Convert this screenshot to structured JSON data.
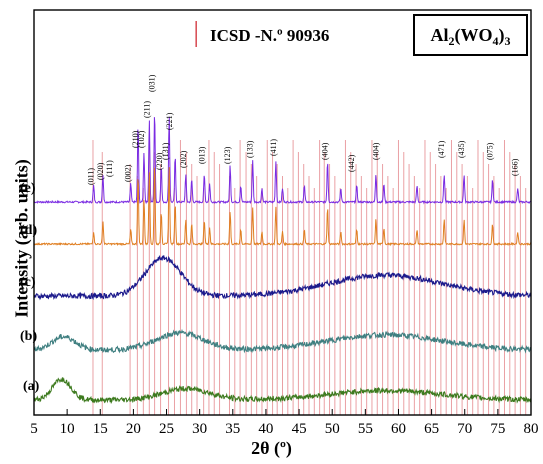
{
  "chart_data": {
    "type": "line",
    "title": "",
    "xlabel": "2θ (º)",
    "ylabel": "Intensity (arb. units)",
    "xlim": [
      5,
      80
    ],
    "x_ticks": [
      5,
      10,
      15,
      20,
      25,
      30,
      35,
      40,
      45,
      50,
      55,
      60,
      65,
      70,
      75,
      80
    ],
    "y_ticks_shown": false,
    "reference_legend": "ICSD -N.º 90936",
    "formula_box": {
      "text": "Al",
      "sub1": "2",
      "mid": "(WO",
      "sub2": "4",
      "end": ")",
      "sub3": "3"
    },
    "reference_color": "#d9535a",
    "reference_lines": [
      13.9,
      15.3,
      19.5,
      20.6,
      21.5,
      22.4,
      23.2,
      24.1,
      25.3,
      26.2,
      27.1,
      28.0,
      28.8,
      29.6,
      30.6,
      31.4,
      32.2,
      33.0,
      34.5,
      35.3,
      36.1,
      37.0,
      37.8,
      38.6,
      39.4,
      40.2,
      41.0,
      41.7,
      42.5,
      43.3,
      44.1,
      44.9,
      45.7,
      46.5,
      47.3,
      48.1,
      48.8,
      49.6,
      50.4,
      51.2,
      52.0,
      52.8,
      53.6,
      54.4,
      55.2,
      56.0,
      56.8,
      57.6,
      58.4,
      59.2,
      60.0,
      60.8,
      61.6,
      62.4,
      63.2,
      64.0,
      64.8,
      65.6,
      66.4,
      67.2,
      68.0,
      68.8,
      69.6,
      70.4,
      71.2,
      72.0,
      72.8,
      73.6,
      74.4,
      75.2,
      76.0,
      76.8,
      77.6,
      78.4,
      79.2
    ],
    "series": [
      {
        "name": "(e)",
        "color": "#7a2be2",
        "kind": "crystalline",
        "peaks": [
          [
            14.0,
            0.18
          ],
          [
            15.4,
            0.3
          ],
          [
            19.6,
            0.2
          ],
          [
            20.7,
            0.85
          ],
          [
            21.6,
            0.55
          ],
          [
            22.4,
            0.9
          ],
          [
            23.2,
            1.0
          ],
          [
            24.2,
            0.4
          ],
          [
            25.4,
            0.95
          ],
          [
            26.3,
            0.5
          ],
          [
            27.9,
            0.3
          ],
          [
            28.8,
            0.25
          ],
          [
            30.7,
            0.3
          ],
          [
            31.5,
            0.2
          ],
          [
            34.6,
            0.4
          ],
          [
            36.2,
            0.18
          ],
          [
            38.0,
            0.45
          ],
          [
            39.4,
            0.15
          ],
          [
            41.5,
            0.45
          ],
          [
            42.5,
            0.15
          ],
          [
            45.8,
            0.18
          ],
          [
            49.3,
            0.45
          ],
          [
            51.3,
            0.15
          ],
          [
            53.7,
            0.18
          ],
          [
            56.6,
            0.3
          ],
          [
            57.8,
            0.2
          ],
          [
            62.8,
            0.18
          ],
          [
            66.9,
            0.3
          ],
          [
            69.9,
            0.3
          ],
          [
            74.2,
            0.25
          ],
          [
            78.0,
            0.15
          ]
        ]
      },
      {
        "name": "(d)",
        "color": "#e07f22",
        "kind": "crystalline",
        "peaks": [
          [
            14.0,
            0.15
          ],
          [
            15.4,
            0.28
          ],
          [
            19.6,
            0.18
          ],
          [
            20.7,
            0.85
          ],
          [
            21.6,
            0.55
          ],
          [
            22.4,
            0.9
          ],
          [
            23.2,
            1.0
          ],
          [
            24.2,
            0.4
          ],
          [
            25.4,
            0.95
          ],
          [
            26.3,
            0.5
          ],
          [
            27.9,
            0.3
          ],
          [
            28.8,
            0.25
          ],
          [
            30.7,
            0.3
          ],
          [
            31.5,
            0.2
          ],
          [
            34.6,
            0.4
          ],
          [
            36.2,
            0.18
          ],
          [
            38.0,
            0.45
          ],
          [
            39.4,
            0.15
          ],
          [
            41.5,
            0.45
          ],
          [
            42.5,
            0.15
          ],
          [
            45.8,
            0.18
          ],
          [
            49.3,
            0.45
          ],
          [
            51.3,
            0.15
          ],
          [
            53.7,
            0.18
          ],
          [
            56.6,
            0.3
          ],
          [
            57.8,
            0.2
          ],
          [
            62.8,
            0.18
          ],
          [
            66.9,
            0.3
          ],
          [
            69.9,
            0.3
          ],
          [
            74.2,
            0.25
          ],
          [
            78.0,
            0.15
          ]
        ]
      },
      {
        "name": "(c)",
        "color": "#1c1a8c",
        "kind": "amorphous",
        "humps": [
          [
            24.5,
            1.0,
            3.8
          ],
          [
            58,
            0.55,
            12
          ]
        ]
      },
      {
        "name": "(b)",
        "color": "#3f7f80",
        "kind": "amorphous",
        "humps": [
          [
            9.5,
            0.35,
            2.5
          ],
          [
            27,
            0.45,
            5
          ],
          [
            58,
            0.4,
            12
          ]
        ]
      },
      {
        "name": "(a)",
        "color": "#3d7a1e",
        "kind": "amorphous",
        "humps": [
          [
            9.2,
            0.55,
            2.0
          ],
          [
            28,
            0.3,
            5
          ],
          [
            58,
            0.25,
            12
          ]
        ]
      }
    ],
    "miller_labels": [
      {
        "x": 14.0,
        "text": "(011)"
      },
      {
        "x": 15.4,
        "text": "(020)"
      },
      {
        "x": 16.8,
        "text": "(111)"
      },
      {
        "x": 19.6,
        "text": "(002)"
      },
      {
        "x": 20.7,
        "text": "(210)"
      },
      {
        "x": 21.6,
        "text": "(102)"
      },
      {
        "x": 22.4,
        "text": "(211)"
      },
      {
        "x": 23.2,
        "text": "(031)"
      },
      {
        "x": 24.3,
        "text": "(220)"
      },
      {
        "x": 25.2,
        "text": "(131)"
      },
      {
        "x": 25.8,
        "text": "(221)"
      },
      {
        "x": 27.9,
        "text": "(202)"
      },
      {
        "x": 30.7,
        "text": "(013)"
      },
      {
        "x": 34.6,
        "text": "(123)"
      },
      {
        "x": 38.0,
        "text": "(133)"
      },
      {
        "x": 41.5,
        "text": "(411)"
      },
      {
        "x": 49.3,
        "text": "(404)"
      },
      {
        "x": 53.3,
        "text": "(442)"
      },
      {
        "x": 57.0,
        "text": "(404)"
      },
      {
        "x": 66.9,
        "text": "(471)"
      },
      {
        "x": 69.9,
        "text": "(435)"
      },
      {
        "x": 74.2,
        "text": "(075)"
      },
      {
        "x": 78.0,
        "text": "(166)"
      }
    ]
  }
}
